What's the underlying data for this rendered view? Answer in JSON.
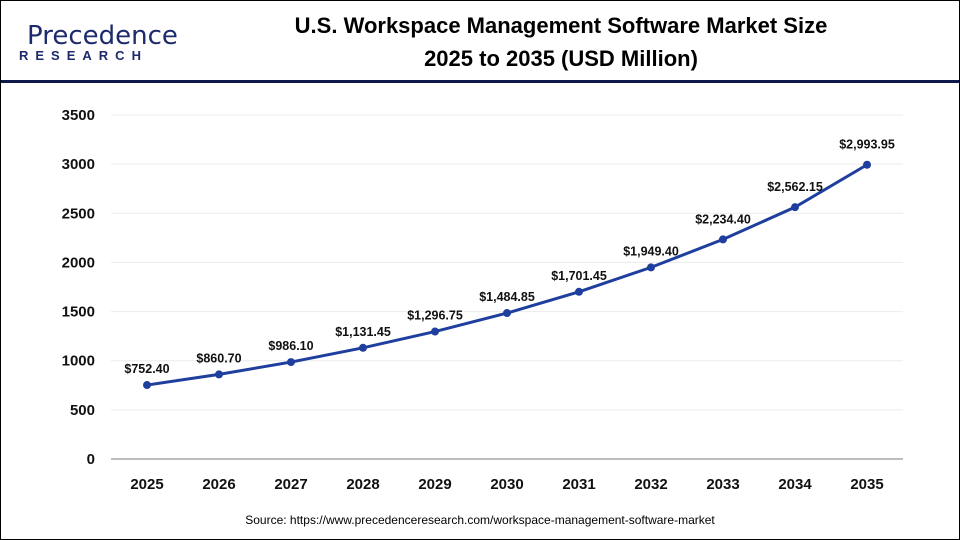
{
  "header": {
    "logo_text": "Precedence",
    "logo_subtext": "RESEARCH",
    "title_line1": "U.S. Workspace Management Software Market Size",
    "title_line2": "2025 to 2035 (USD Million)"
  },
  "chart_data": {
    "type": "line",
    "title": "U.S. Workspace Management Software Market Size 2025 to 2035 (USD Million)",
    "categories": [
      "2025",
      "2026",
      "2027",
      "2028",
      "2029",
      "2030",
      "2031",
      "2032",
      "2033",
      "2034",
      "2035"
    ],
    "values": [
      752.4,
      860.7,
      986.1,
      1131.45,
      1296.75,
      1484.85,
      1701.45,
      1949.4,
      2234.4,
      2562.15,
      2993.95
    ],
    "data_labels": [
      "$752.40",
      "$860.70",
      "$986.10",
      "$1,131.45",
      "$1,296.75",
      "$1,484.85",
      "$1,701.45",
      "$1,949.40",
      "$2,234.40",
      "$2,562.15",
      "$2,993.95"
    ],
    "yticks": [
      0,
      500,
      1000,
      1500,
      2000,
      2500,
      3000,
      3500
    ],
    "ylim": [
      0,
      3500
    ],
    "xlabel": "",
    "ylabel": "",
    "grid": true,
    "legend": "none",
    "line_color": "#1f3f9e"
  },
  "footer": {
    "source": "Source: https://www.precedenceresearch.com/workspace-management-software-market"
  }
}
